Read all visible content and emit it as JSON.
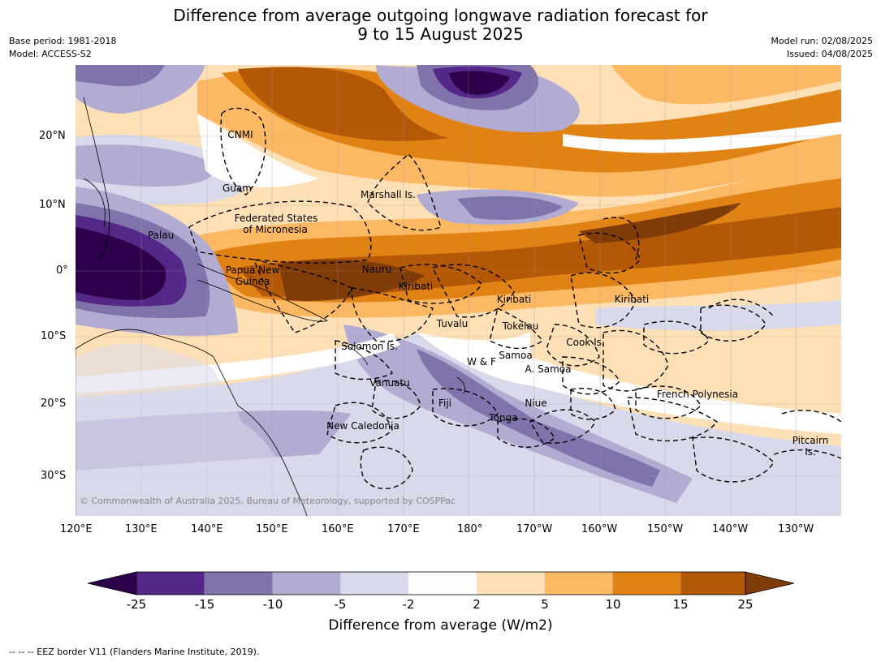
{
  "title": {
    "line1": "Difference from average outgoing longwave radiation forecast for",
    "line2": "9 to 15 August 2025"
  },
  "meta": {
    "base_period": "Base period: 1981-2018",
    "model": "Model: ACCESS-S2",
    "model_run": "Model run: 02/08/2025",
    "issued": "Issued: 04/08/2025"
  },
  "map": {
    "region": "Western and Central Pacific",
    "lon_ticks": [
      "120°E",
      "130°E",
      "140°E",
      "150°E",
      "160°E",
      "170°E",
      "180°",
      "170°W",
      "160°W",
      "150°W",
      "140°W",
      "130°W"
    ],
    "lat_ticks": [
      "20°N",
      "10°N",
      "0°",
      "10°S",
      "20°S",
      "30°S"
    ],
    "labels": {
      "cnmi": "CNMI",
      "guam": "Guam",
      "marshall": "Marshall Is.",
      "fsm1": "Federated States",
      "fsm2": "of Micronesia",
      "palau": "Palau",
      "png1": "Papua New",
      "png2": "Guinea",
      "nauru": "Nauru",
      "kiribati_w": "Kiribati",
      "kiribati_c": "Kiribati",
      "kiribati_e": "Kiribati",
      "tuvalu": "Tuvalu",
      "tokelau": "Tokelau",
      "solomon": "Solomon Is.",
      "samoa": "Samoa",
      "wf": "W & F",
      "asamoa": "A. Samoa",
      "cook": "Cook Is.",
      "vanuatu": "Vanuatu",
      "fiji": "Fiji",
      "niue": "Niue",
      "tonga": "Tonga",
      "frpoly": "French Polynesia",
      "newcal": "New Caledonia",
      "pitcairn1": "Pitcairn",
      "pitcairn2": "Is."
    },
    "copyright": "© Commonwealth of Australia 2025, Bureau of Meteorology, supported by COSPPac",
    "colors": {
      "lt_m25": "#2d004b",
      "m25_m15": "#542788",
      "m15_m10": "#8073ac",
      "m10_m5": "#b2abd2",
      "m5_m2": "#d8daeb",
      "m2_2": "#ffffff",
      "p2_5": "#fee0b6",
      "p5_10": "#fdb863",
      "p10_15": "#e08214",
      "p15_25": "#b35806",
      "gt_25": "#7f3b08"
    }
  },
  "colorbar": {
    "title": "Difference from average (W/m2)",
    "tick_labels": [
      "-25",
      "-15",
      "-10",
      "-5",
      "-2",
      "2",
      "5",
      "10",
      "15",
      "25"
    ],
    "colors": [
      "#2d004b",
      "#542788",
      "#8073ac",
      "#b2abd2",
      "#d8daeb",
      "#ffffff",
      "#fee0b6",
      "#fdb863",
      "#e08214",
      "#b35806",
      "#7f3b08"
    ]
  },
  "footer": "--  --  -- EEZ border V11 (Flanders Marine Institute, 2019)."
}
